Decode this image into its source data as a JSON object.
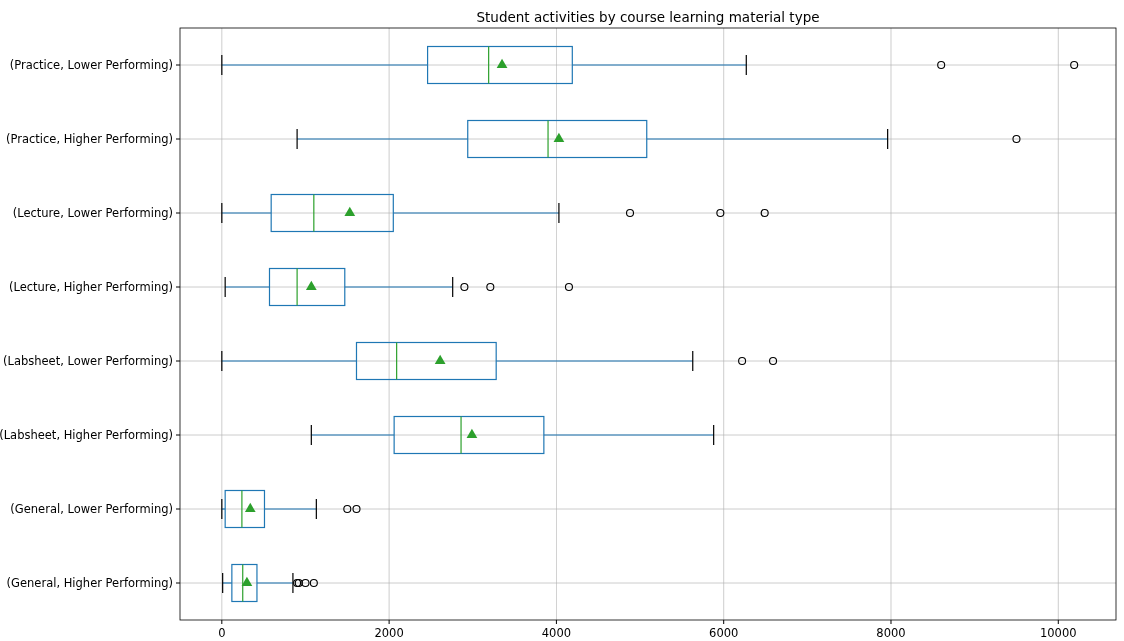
{
  "chart_data": {
    "type": "box",
    "title": "Student activities by course learning material type",
    "orientation": "horizontal",
    "categories": [
      "(Practice, Lower Performing)",
      "(Practice, Higher Performing)",
      "(Lecture, Lower Performing)",
      "(Lecture, Higher Performing)",
      "(Labsheet, Lower Performing)",
      "(Labsheet, Higher Performing)",
      "(General, Lower Performing)",
      "(General, Higher Performing)"
    ],
    "xlim": [
      -500,
      10690
    ],
    "xticks": [
      0,
      2000,
      4000,
      6000,
      8000,
      10000
    ],
    "grid": true,
    "marker": "triangle",
    "series": [
      {
        "color": "#1f77b4",
        "boxes": [
          {
            "low": 0,
            "q1": 2460,
            "median": 3190,
            "q3": 4190,
            "high": 6270,
            "mean": 3350,
            "outliers": [
              8600,
              10190
            ]
          },
          {
            "low": 900,
            "q1": 2940,
            "median": 3900,
            "q3": 5080,
            "high": 7960,
            "mean": 4030,
            "outliers": [
              9500
            ]
          },
          {
            "low": 0,
            "q1": 590,
            "median": 1100,
            "q3": 2050,
            "high": 4030,
            "mean": 1530,
            "outliers": [
              4880,
              5960,
              6490
            ]
          },
          {
            "low": 40,
            "q1": 570,
            "median": 900,
            "q3": 1470,
            "high": 2760,
            "mean": 1070,
            "outliers": [
              2900,
              3210,
              4150
            ]
          },
          {
            "low": 0,
            "q1": 1610,
            "median": 2090,
            "q3": 3280,
            "high": 5630,
            "mean": 2610,
            "outliers": [
              6220,
              6590
            ]
          },
          {
            "low": 1070,
            "q1": 2060,
            "median": 2860,
            "q3": 3850,
            "high": 5880,
            "mean": 2990
          },
          {
            "low": 0,
            "q1": 40,
            "median": 240,
            "q3": 510,
            "high": 1130,
            "mean": 340,
            "outliers": [
              1500,
              1610
            ]
          },
          {
            "low": 10,
            "q1": 120,
            "median": 250,
            "q3": 420,
            "high": 850,
            "mean": 300,
            "outliers": [
              900,
              920,
              1000,
              1100
            ]
          }
        ]
      }
    ]
  }
}
